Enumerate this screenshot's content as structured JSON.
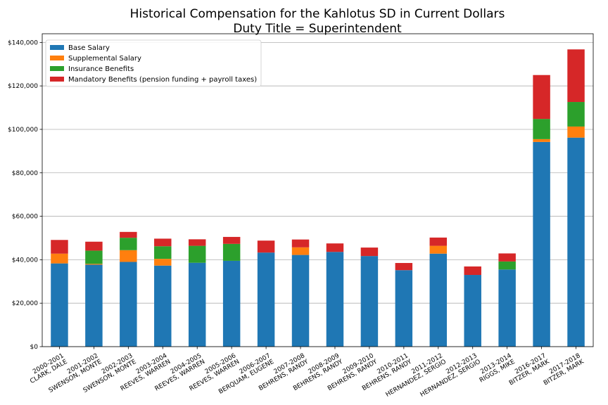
{
  "chart_data": {
    "type": "bar",
    "stacked": true,
    "title": "Historical Compensation for the Kahlotus SD in Current Dollars",
    "subtitle": "Duty Title = Superintendent",
    "xlabel": "",
    "ylabel": "",
    "ylim": [
      0,
      144000
    ],
    "yticks": [
      0,
      20000,
      40000,
      60000,
      80000,
      100000,
      120000,
      140000
    ],
    "ytick_labels": [
      "$0",
      "$20,000",
      "$40,000",
      "$60,000",
      "$80,000",
      "$100,000",
      "$120,000",
      "$140,000"
    ],
    "grid": "horizontal",
    "legend_position": "top-left",
    "categories": [
      {
        "year": "2000-2001",
        "name": "CLARK, DALE"
      },
      {
        "year": "2001-2002",
        "name": "SWENSON, MONTE"
      },
      {
        "year": "2002-2003",
        "name": "SWENSON, MONTE"
      },
      {
        "year": "2003-2004",
        "name": "REEVES, WARREN"
      },
      {
        "year": "2004-2005",
        "name": "REEVES, WARREN"
      },
      {
        "year": "2005-2006",
        "name": "REEVES, WARREN"
      },
      {
        "year": "2006-2007",
        "name": "BERQUAM, EUGENE"
      },
      {
        "year": "2007-2008",
        "name": "BEHRENS, RANDY"
      },
      {
        "year": "2008-2009",
        "name": "BEHRENS, RANDY"
      },
      {
        "year": "2009-2010",
        "name": "BEHRENS, RANDY"
      },
      {
        "year": "2010-2011",
        "name": "BEHRENS, RANDY"
      },
      {
        "year": "2011-2012",
        "name": "HERNANDEZ, SERGIO"
      },
      {
        "year": "2012-2013",
        "name": "HERNANDEZ, SERGIO"
      },
      {
        "year": "2013-2014",
        "name": "RIGGS, MIKE"
      },
      {
        "year": "2016-2017",
        "name": "BITZER, MARK"
      },
      {
        "year": "2017-2018",
        "name": "BITZER, MARK"
      }
    ],
    "series": [
      {
        "name": "Base Salary",
        "color": "#1f77b4",
        "values": [
          38300,
          37700,
          39000,
          37300,
          38600,
          39500,
          43300,
          42200,
          43600,
          41700,
          35200,
          42800,
          33000,
          35500,
          94200,
          96200
        ]
      },
      {
        "name": "Supplemental Salary",
        "color": "#ff7f0e",
        "values": [
          4500,
          400,
          5400,
          3100,
          0,
          0,
          0,
          3500,
          0,
          0,
          0,
          3600,
          0,
          0,
          1300,
          5100
        ]
      },
      {
        "name": "Insurance Benefits",
        "color": "#2ca02c",
        "values": [
          0,
          6100,
          5700,
          5800,
          7800,
          7800,
          0,
          0,
          0,
          0,
          0,
          0,
          0,
          3700,
          9300,
          11300
        ]
      },
      {
        "name": "Mandatory Benefits (pension funding + payroll taxes)",
        "color": "#d62728",
        "values": [
          6300,
          4100,
          2700,
          3500,
          3000,
          3200,
          5500,
          3600,
          3900,
          3900,
          3300,
          3800,
          3900,
          3700,
          20200,
          24200
        ]
      }
    ]
  }
}
